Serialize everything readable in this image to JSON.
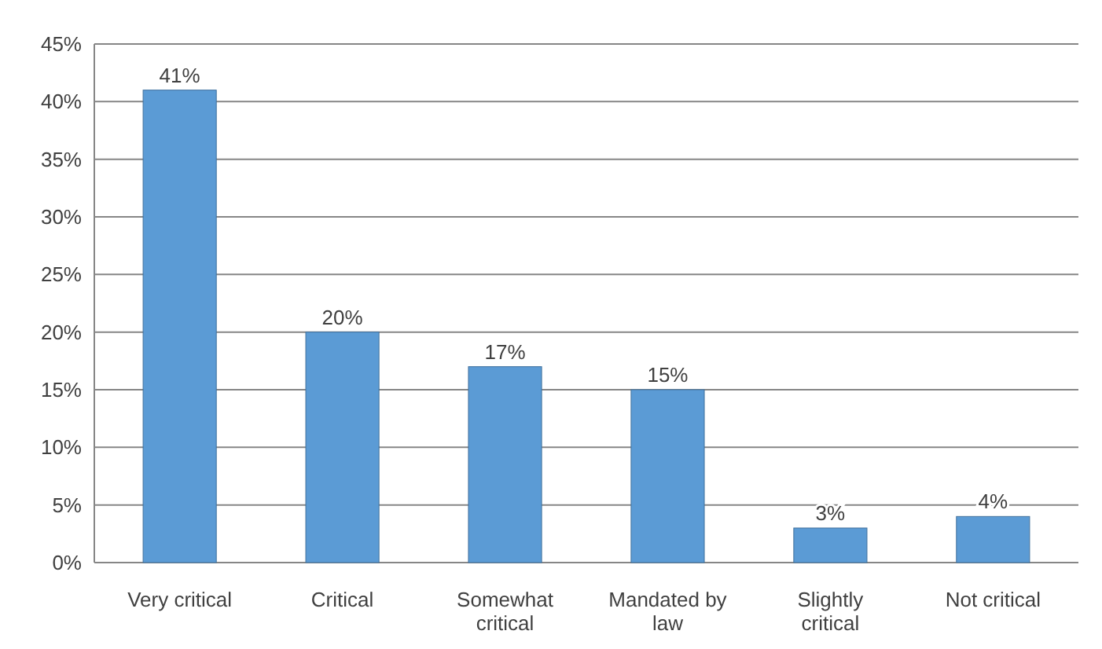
{
  "chart_data": {
    "type": "bar",
    "categories": [
      "Very critical",
      "Critical",
      "Somewhat critical",
      "Mandated by law",
      "Slightly critical",
      "Not critical"
    ],
    "values": [
      41,
      20,
      17,
      15,
      3,
      4
    ],
    "value_labels": [
      "41%",
      "20%",
      "17%",
      "15%",
      "3%",
      "4%"
    ],
    "color": "#5b9bd5",
    "ylim": [
      0,
      45
    ],
    "yticks": [
      {
        "value": 0,
        "label": "0%"
      },
      {
        "value": 5,
        "label": "5%"
      },
      {
        "value": 10,
        "label": "10%"
      },
      {
        "value": 15,
        "label": "15%"
      },
      {
        "value": 20,
        "label": "20%"
      },
      {
        "value": 25,
        "label": "25%"
      },
      {
        "value": 30,
        "label": "30%"
      },
      {
        "value": 35,
        "label": "35%"
      },
      {
        "value": 40,
        "label": "40%"
      },
      {
        "value": 45,
        "label": "45%"
      }
    ],
    "grid": "y"
  }
}
